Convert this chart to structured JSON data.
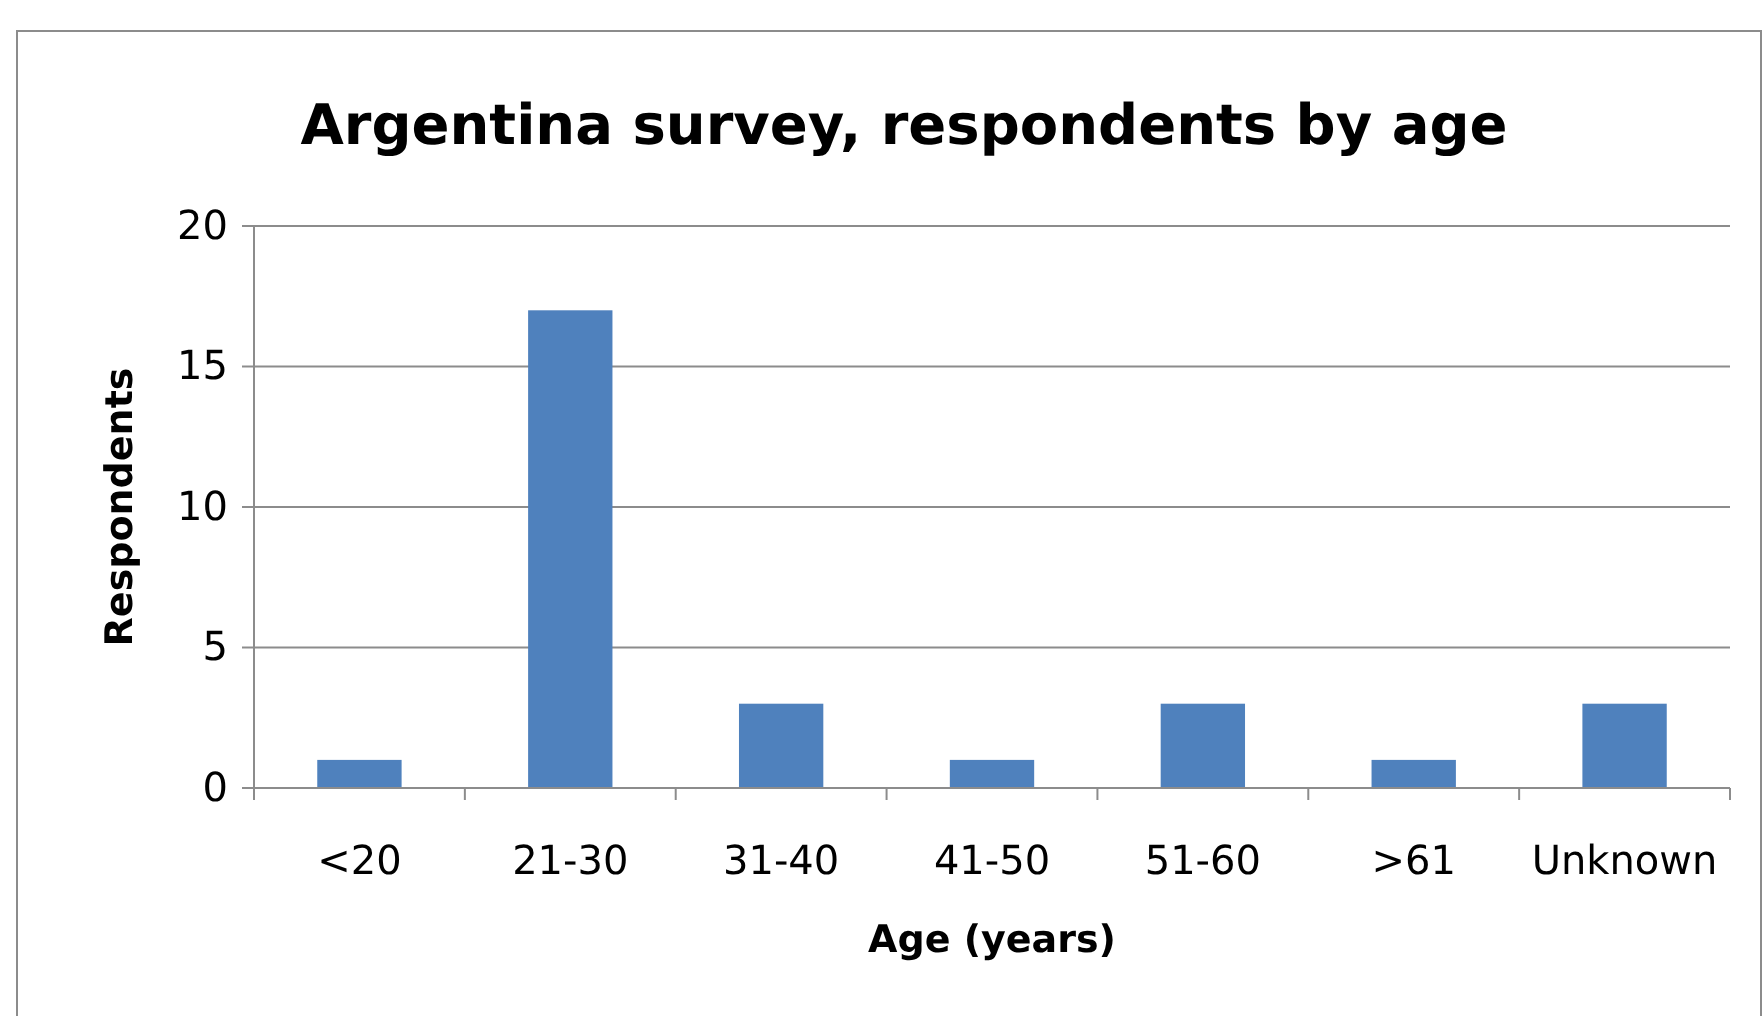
{
  "chart_data": {
    "type": "bar",
    "title": "Argentina survey, respondents by age",
    "xlabel": "Age (years)",
    "ylabel": "Respondents",
    "categories": [
      "<20",
      "21-30",
      "31-40",
      "41-50",
      "51-60",
      ">61",
      "Unknown"
    ],
    "values": [
      1,
      17,
      3,
      1,
      3,
      1,
      3
    ],
    "color": "#4f81bd",
    "ylim": [
      0,
      20
    ],
    "yticks": [
      0,
      5,
      10,
      15,
      20
    ],
    "grid": "y"
  }
}
